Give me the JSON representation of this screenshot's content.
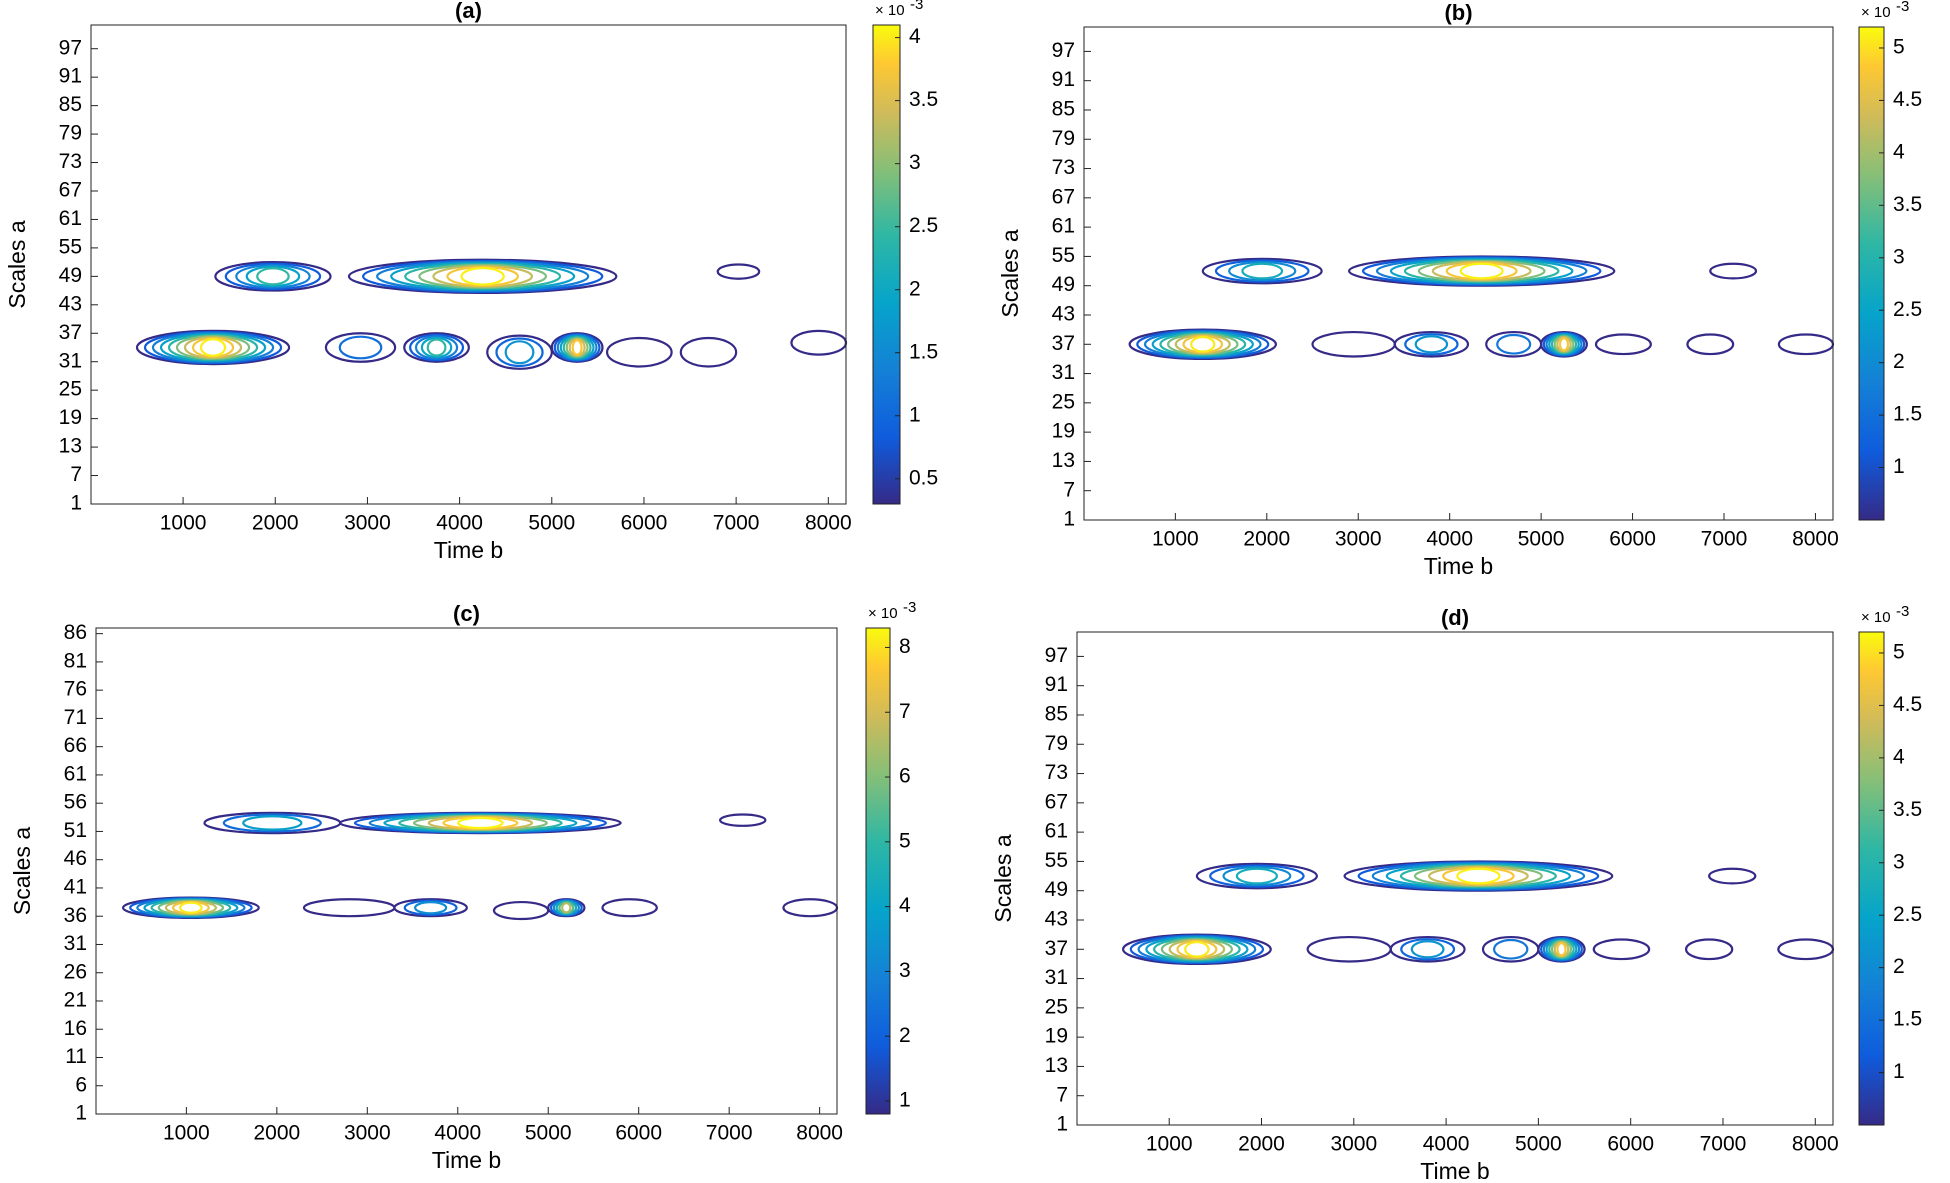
{
  "chart_data": [
    {
      "type": "contour",
      "title": "(a)",
      "x_label": "Time b",
      "y_label": "Scales a",
      "xlim": [
        1,
        8192
      ],
      "xticks": [
        1000,
        2000,
        3000,
        4000,
        5000,
        6000,
        7000,
        8000
      ],
      "ylim": [
        1,
        102
      ],
      "yticks": [
        1,
        7,
        13,
        19,
        25,
        31,
        37,
        43,
        49,
        55,
        61,
        67,
        73,
        79,
        85,
        91,
        97
      ],
      "clim": [
        0.3,
        4.1
      ],
      "cticks": [
        0.5,
        1,
        1.5,
        2,
        2.5,
        3,
        3.5,
        4
      ],
      "colorbar_base": "× 10",
      "colorbar_exponent": "-3",
      "blobs": [
        {
          "x": [
            1350,
            2600
          ],
          "y": 49,
          "h": 3,
          "peak": 2.2
        },
        {
          "x": [
            2800,
            5700
          ],
          "y": 49,
          "h": 3.5,
          "peak": 4.0
        },
        {
          "x": [
            6800,
            7250
          ],
          "y": 50,
          "h": 1.5,
          "peak": 0.6
        },
        {
          "x": [
            500,
            2150
          ],
          "y": 34,
          "h": 3.5,
          "peak": 4.0
        },
        {
          "x": [
            2550,
            3300
          ],
          "y": 34,
          "h": 3,
          "peak": 1.0
        },
        {
          "x": [
            3400,
            4100
          ],
          "y": 34,
          "h": 3,
          "peak": 2.2
        },
        {
          "x": [
            4300,
            5000
          ],
          "y": 33,
          "h": 3.5,
          "peak": 1.5
        },
        {
          "x": [
            5000,
            5550
          ],
          "y": 34,
          "h": 3,
          "peak": 3.6
        },
        {
          "x": [
            5600,
            6300
          ],
          "y": 33,
          "h": 3,
          "peak": 0.8
        },
        {
          "x": [
            6400,
            7000
          ],
          "y": 33,
          "h": 3,
          "peak": 0.6
        },
        {
          "x": [
            7600,
            8192
          ],
          "y": 35,
          "h": 2.5,
          "peak": 0.8
        }
      ]
    },
    {
      "type": "contour",
      "title": "(b)",
      "x_label": "Time b",
      "y_label": "Scales a",
      "xlim": [
        1,
        8192
      ],
      "xticks": [
        1000,
        2000,
        3000,
        4000,
        5000,
        6000,
        7000,
        8000
      ],
      "ylim": [
        1,
        102
      ],
      "yticks": [
        1,
        7,
        13,
        19,
        25,
        31,
        37,
        43,
        49,
        55,
        61,
        67,
        73,
        79,
        85,
        91,
        97
      ],
      "clim": [
        0.5,
        5.2
      ],
      "cticks": [
        1,
        1.5,
        2,
        2.5,
        3,
        3.5,
        4,
        4.5,
        5
      ],
      "colorbar_base": "× 10",
      "colorbar_exponent": "-3",
      "blobs": [
        {
          "x": [
            1300,
            2600
          ],
          "y": 52,
          "h": 2.5,
          "peak": 2.5
        },
        {
          "x": [
            2900,
            5800
          ],
          "y": 52,
          "h": 3,
          "peak": 5.1
        },
        {
          "x": [
            6850,
            7350
          ],
          "y": 52,
          "h": 1.5,
          "peak": 0.8
        },
        {
          "x": [
            500,
            2100
          ],
          "y": 37,
          "h": 3,
          "peak": 5.0
        },
        {
          "x": [
            2500,
            3400
          ],
          "y": 37,
          "h": 2.5,
          "peak": 1.0
        },
        {
          "x": [
            3400,
            4200
          ],
          "y": 37,
          "h": 2.5,
          "peak": 2.0
        },
        {
          "x": [
            4400,
            5000
          ],
          "y": 37,
          "h": 2.5,
          "peak": 1.5
        },
        {
          "x": [
            5000,
            5500
          ],
          "y": 37,
          "h": 2.5,
          "peak": 4.5
        },
        {
          "x": [
            5600,
            6200
          ],
          "y": 37,
          "h": 2,
          "peak": 0.8
        },
        {
          "x": [
            6600,
            7100
          ],
          "y": 37,
          "h": 2,
          "peak": 0.8
        },
        {
          "x": [
            7600,
            8192
          ],
          "y": 37,
          "h": 2,
          "peak": 0.9
        }
      ]
    },
    {
      "type": "contour",
      "title": "(c)",
      "x_label": "Time b",
      "y_label": "Scales a",
      "xlim": [
        1,
        8192
      ],
      "xticks": [
        1000,
        2000,
        3000,
        4000,
        5000,
        6000,
        7000,
        8000
      ],
      "ylim": [
        1,
        87
      ],
      "yticks": [
        1,
        6,
        11,
        16,
        21,
        26,
        31,
        36,
        41,
        46,
        51,
        56,
        61,
        66,
        71,
        76,
        81,
        86
      ],
      "clim": [
        0.8,
        8.3
      ],
      "cticks": [
        1,
        2,
        3,
        4,
        5,
        6,
        7,
        8
      ],
      "colorbar_base": "× 10",
      "colorbar_exponent": "-3",
      "blobs": [
        {
          "x": [
            1200,
            2700
          ],
          "y": 52.5,
          "h": 1.8,
          "peak": 3.5
        },
        {
          "x": [
            2700,
            5800
          ],
          "y": 52.5,
          "h": 1.8,
          "peak": 8.2
        },
        {
          "x": [
            6900,
            7400
          ],
          "y": 53,
          "h": 1,
          "peak": 1.0
        },
        {
          "x": [
            300,
            1800
          ],
          "y": 37.5,
          "h": 1.8,
          "peak": 8.0
        },
        {
          "x": [
            2300,
            3300
          ],
          "y": 37.5,
          "h": 1.5,
          "peak": 2.0
        },
        {
          "x": [
            3300,
            4100
          ],
          "y": 37.5,
          "h": 1.5,
          "peak": 3.0
        },
        {
          "x": [
            4400,
            5000
          ],
          "y": 37,
          "h": 1.5,
          "peak": 2.0
        },
        {
          "x": [
            5000,
            5400
          ],
          "y": 37.5,
          "h": 1.5,
          "peak": 6.0
        },
        {
          "x": [
            5600,
            6200
          ],
          "y": 37.5,
          "h": 1.5,
          "peak": 1.0
        },
        {
          "x": [
            7600,
            8192
          ],
          "y": 37.5,
          "h": 1.5,
          "peak": 1.5
        }
      ]
    },
    {
      "type": "contour",
      "title": "(d)",
      "x_label": "Time b",
      "y_label": "Scales a",
      "xlim": [
        1,
        8192
      ],
      "xticks": [
        1000,
        2000,
        3000,
        4000,
        5000,
        6000,
        7000,
        8000
      ],
      "ylim": [
        1,
        102
      ],
      "yticks": [
        1,
        7,
        13,
        19,
        25,
        31,
        37,
        43,
        49,
        55,
        61,
        67,
        73,
        79,
        85,
        91,
        97
      ],
      "clim": [
        0.5,
        5.2
      ],
      "cticks": [
        1,
        1.5,
        2,
        2.5,
        3,
        3.5,
        4,
        4.5,
        5
      ],
      "colorbar_base": "× 10",
      "colorbar_exponent": "-3",
      "blobs": [
        {
          "x": [
            1300,
            2600
          ],
          "y": 52,
          "h": 2.5,
          "peak": 2.5
        },
        {
          "x": [
            2900,
            5800
          ],
          "y": 52,
          "h": 3,
          "peak": 5.1
        },
        {
          "x": [
            6850,
            7350
          ],
          "y": 52,
          "h": 1.5,
          "peak": 0.8
        },
        {
          "x": [
            500,
            2100
          ],
          "y": 37,
          "h": 3,
          "peak": 5.0
        },
        {
          "x": [
            2500,
            3400
          ],
          "y": 37,
          "h": 2.5,
          "peak": 1.0
        },
        {
          "x": [
            3400,
            4200
          ],
          "y": 37,
          "h": 2.5,
          "peak": 2.0
        },
        {
          "x": [
            4400,
            5000
          ],
          "y": 37,
          "h": 2.5,
          "peak": 1.5
        },
        {
          "x": [
            5000,
            5500
          ],
          "y": 37,
          "h": 2.5,
          "peak": 4.5
        },
        {
          "x": [
            5600,
            6200
          ],
          "y": 37,
          "h": 2,
          "peak": 0.8
        },
        {
          "x": [
            6600,
            7100
          ],
          "y": 37,
          "h": 2,
          "peak": 0.8
        },
        {
          "x": [
            7600,
            8192
          ],
          "y": 37,
          "h": 2,
          "peak": 0.9
        }
      ]
    }
  ]
}
